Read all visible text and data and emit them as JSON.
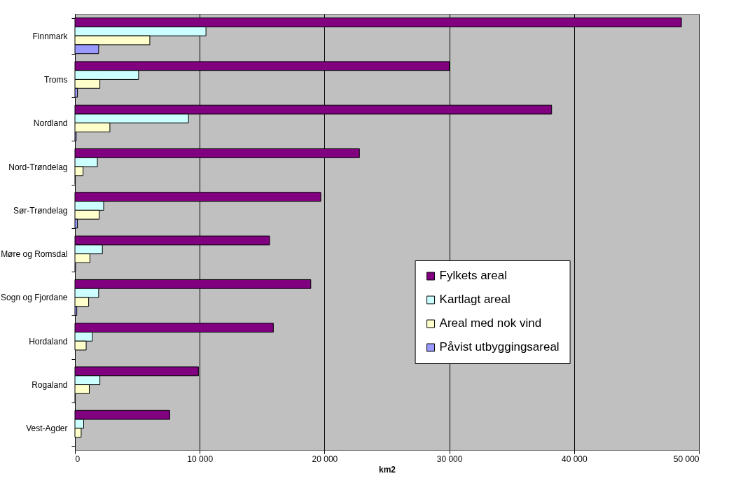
{
  "chart_data": {
    "type": "bar",
    "orientation": "horizontal",
    "xlabel": "km2",
    "categories": [
      "Finnmark",
      "Troms",
      "Nordland",
      "Nord-Trøndelag",
      "Sør-Trøndelag",
      "Møre og Romsdal",
      "Sogn og Fjordane",
      "Hordaland",
      "Rogaland",
      "Vest-Agder"
    ],
    "series": [
      {
        "name": "Fylkets areal",
        "color": "#800080",
        "values": [
          48600,
          30000,
          38200,
          22800,
          19700,
          15600,
          18900,
          15900,
          9900,
          7600
        ]
      },
      {
        "name": "Kartlagt areal",
        "color": "#ccffff",
        "values": [
          10500,
          5100,
          9100,
          1800,
          2300,
          2200,
          1900,
          1400,
          2000,
          700
        ]
      },
      {
        "name": "Areal med nok vind",
        "color": "#ffffcc",
        "values": [
          6000,
          2000,
          2800,
          650,
          1950,
          1200,
          1100,
          900,
          1150,
          500
        ]
      },
      {
        "name": "Påvist utbyggingsareal",
        "color": "#9999ff",
        "values": [
          1900,
          200,
          100,
          30,
          200,
          50,
          150,
          null,
          30,
          null
        ]
      }
    ],
    "xlim": [
      0,
      50000
    ],
    "xticks": [
      0,
      {
        "value": 10000,
        "label": "10 000"
      },
      {
        "value": 20000,
        "label": "20 000"
      },
      {
        "value": 30000,
        "label": "30 000"
      },
      {
        "value": 40000,
        "label": "40 000"
      },
      {
        "value": 50000,
        "label": "50 000"
      }
    ],
    "grid": "x",
    "legend": "right"
  }
}
